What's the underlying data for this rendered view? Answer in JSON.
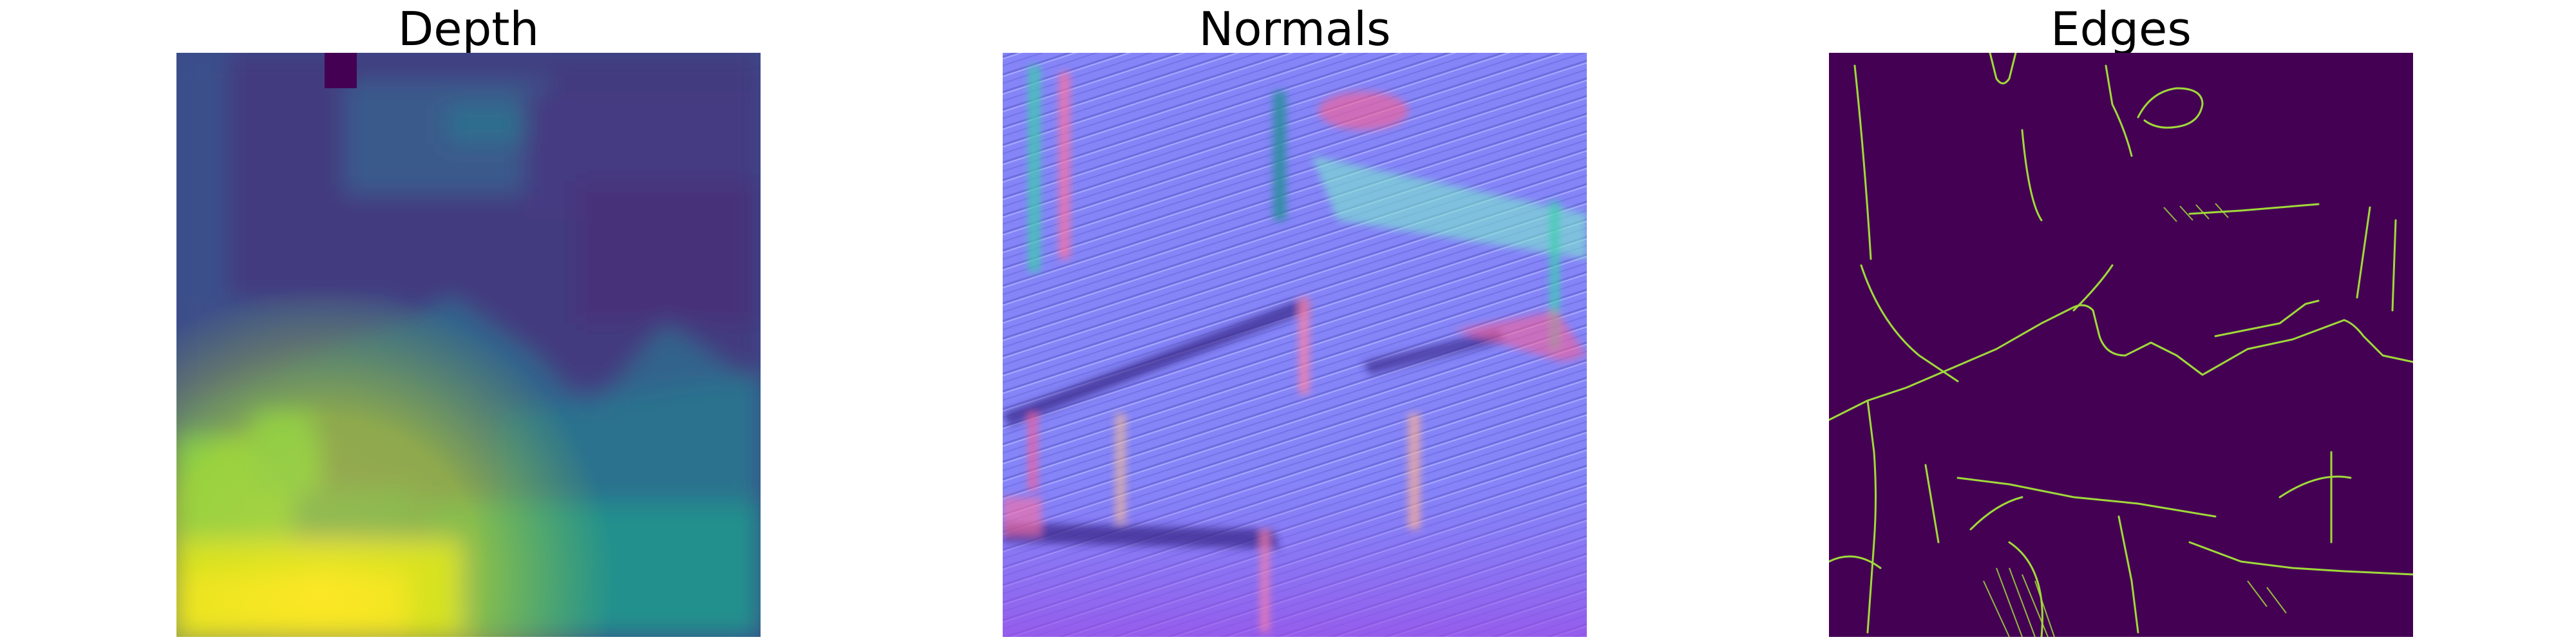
{
  "figure": {
    "panels": [
      {
        "id": "depth",
        "title": "Depth",
        "colormap": "viridis",
        "colors": {
          "low": "#440154",
          "mid": "#2a788e",
          "high": "#fde725"
        }
      },
      {
        "id": "normals",
        "title": "Normals",
        "colors": {
          "base": "#8080ff",
          "red_edge": "#ff5a8c",
          "green_edge": "#40d9a0"
        }
      },
      {
        "id": "edges",
        "title": "Edges",
        "colors": {
          "background": "#440154",
          "edge": "#a0da39"
        }
      }
    ]
  }
}
